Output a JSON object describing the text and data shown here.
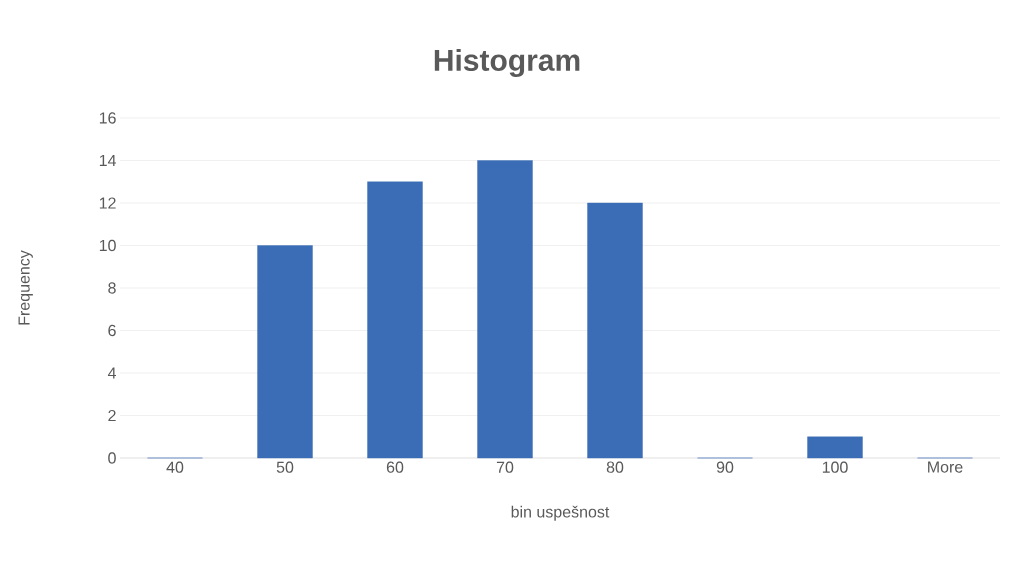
{
  "chart_data": {
    "type": "bar",
    "title": "Histogram",
    "xlabel": "bin uspešnost",
    "ylabel": "Frequency",
    "categories": [
      "40",
      "50",
      "60",
      "70",
      "80",
      "90",
      "100",
      "More"
    ],
    "values": [
      0,
      10,
      13,
      14,
      12,
      0,
      1,
      0
    ],
    "color": "#3a6db5",
    "ylim": [
      0,
      16
    ],
    "yticks": [
      0,
      2,
      4,
      6,
      8,
      10,
      12,
      14,
      16
    ],
    "grid": "y"
  }
}
